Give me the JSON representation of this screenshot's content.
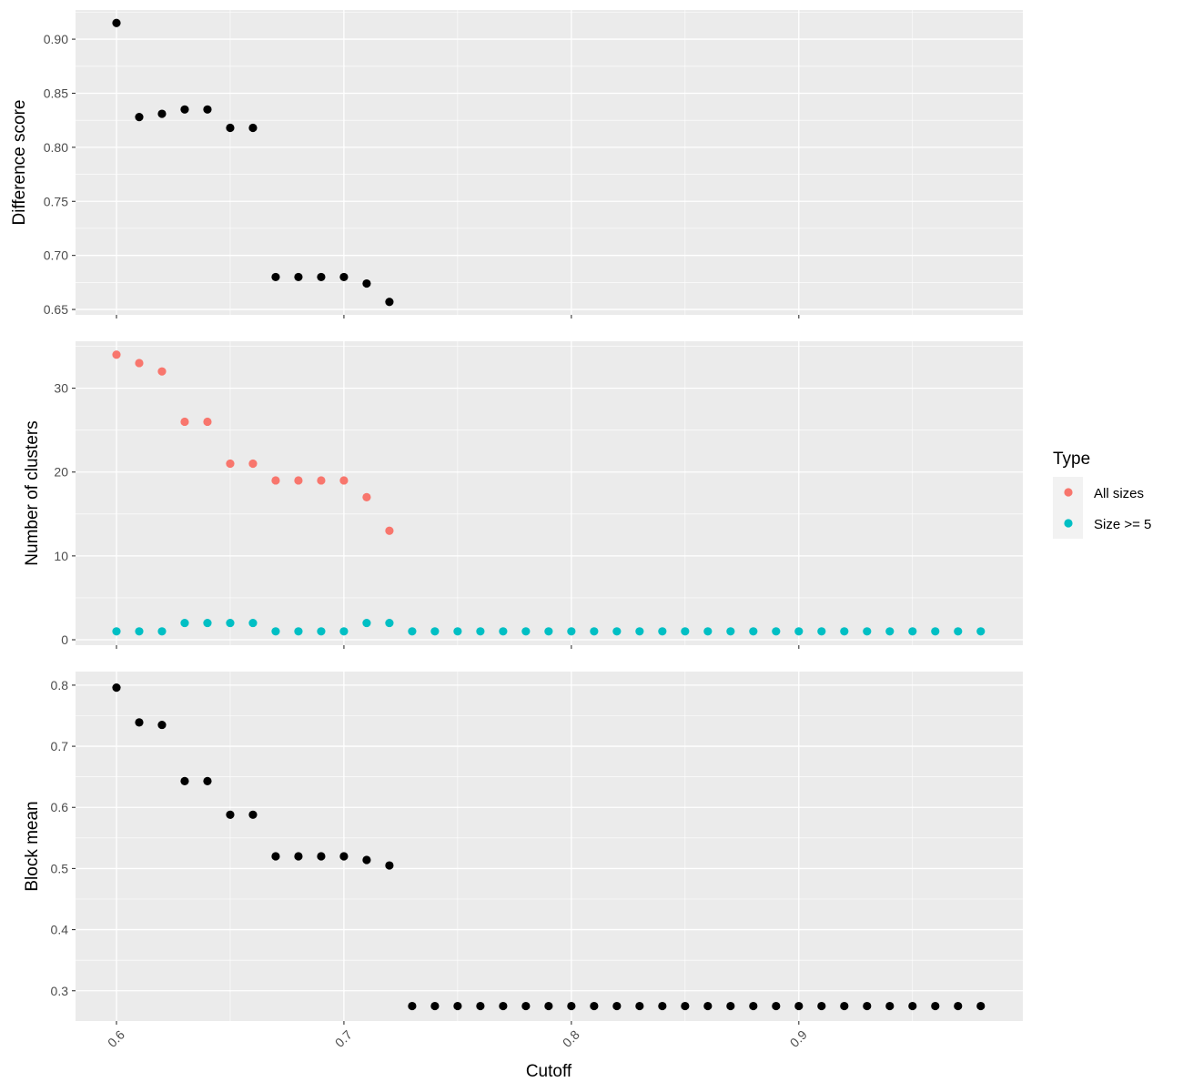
{
  "chart_data": [
    {
      "type": "scatter",
      "panel": "top",
      "ylabel": "Difference score",
      "xlim": [
        0.582,
        0.9985
      ],
      "ylim": [
        0.645,
        0.927
      ],
      "yticks": [
        0.65,
        0.7,
        0.75,
        0.8,
        0.85,
        0.9
      ],
      "ytick_labels": [
        "0.65",
        "0.70",
        "0.75",
        "0.80",
        "0.85",
        "0.90"
      ],
      "series": [
        {
          "color": "#000000",
          "x": [
            0.6,
            0.61,
            0.62,
            0.63,
            0.64,
            0.65,
            0.66,
            0.67,
            0.68,
            0.69,
            0.7,
            0.71,
            0.72
          ],
          "y": [
            0.915,
            0.828,
            0.831,
            0.835,
            0.835,
            0.818,
            0.818,
            0.68,
            0.68,
            0.68,
            0.68,
            0.674,
            0.657
          ]
        }
      ]
    },
    {
      "type": "scatter",
      "panel": "middle",
      "ylabel": "Number of clusters",
      "xlim": [
        0.582,
        0.9985
      ],
      "ylim": [
        -0.65,
        35.6
      ],
      "yticks": [
        0,
        10,
        20,
        30
      ],
      "ytick_labels": [
        "0",
        "10",
        "20",
        "30"
      ],
      "series": [
        {
          "name": "All sizes",
          "color": "#F8766D",
          "x": [
            0.6,
            0.61,
            0.62,
            0.63,
            0.64,
            0.65,
            0.66,
            0.67,
            0.68,
            0.69,
            0.7,
            0.71,
            0.72
          ],
          "y": [
            34,
            33,
            32,
            26,
            26,
            21,
            21,
            19,
            19,
            19,
            19,
            17,
            13
          ]
        },
        {
          "name": "Size >= 5",
          "color": "#00BFC4",
          "x": [
            0.6,
            0.61,
            0.62,
            0.63,
            0.64,
            0.65,
            0.66,
            0.67,
            0.68,
            0.69,
            0.7,
            0.71,
            0.72,
            0.73,
            0.74,
            0.75,
            0.76,
            0.77,
            0.78,
            0.79,
            0.8,
            0.81,
            0.82,
            0.83,
            0.84,
            0.85,
            0.86,
            0.87,
            0.88,
            0.89,
            0.9,
            0.91,
            0.92,
            0.93,
            0.94,
            0.95,
            0.96,
            0.97,
            0.98
          ],
          "y": [
            1,
            1,
            1,
            2,
            2,
            2,
            2,
            1,
            1,
            1,
            1,
            2,
            2,
            1,
            1,
            1,
            1,
            1,
            1,
            1,
            1,
            1,
            1,
            1,
            1,
            1,
            1,
            1,
            1,
            1,
            1,
            1,
            1,
            1,
            1,
            1,
            1,
            1,
            1
          ]
        }
      ]
    },
    {
      "type": "scatter",
      "panel": "bottom",
      "ylabel": "Block mean",
      "xlabel": "Cutoff",
      "xlim": [
        0.582,
        0.9985
      ],
      "ylim": [
        0.2505,
        0.8222
      ],
      "yticks": [
        0.3,
        0.4,
        0.5,
        0.6,
        0.7,
        0.8
      ],
      "ytick_labels": [
        "0.3",
        "0.4",
        "0.5",
        "0.6",
        "0.7",
        "0.8"
      ],
      "xticks": [
        0.6,
        0.7,
        0.8,
        0.9
      ],
      "xtick_labels": [
        "0.6",
        "0.7",
        "0.8",
        "0.9"
      ],
      "series": [
        {
          "color": "#000000",
          "x": [
            0.6,
            0.61,
            0.62,
            0.63,
            0.64,
            0.65,
            0.66,
            0.67,
            0.68,
            0.69,
            0.7,
            0.71,
            0.72,
            0.73,
            0.74,
            0.75,
            0.76,
            0.77,
            0.78,
            0.79,
            0.8,
            0.81,
            0.82,
            0.83,
            0.84,
            0.85,
            0.86,
            0.87,
            0.88,
            0.89,
            0.9,
            0.91,
            0.92,
            0.93,
            0.94,
            0.95,
            0.96,
            0.97,
            0.98
          ],
          "y": [
            0.796,
            0.739,
            0.735,
            0.643,
            0.643,
            0.588,
            0.588,
            0.52,
            0.52,
            0.52,
            0.52,
            0.514,
            0.505,
            0.275,
            0.275,
            0.275,
            0.275,
            0.275,
            0.275,
            0.275,
            0.275,
            0.275,
            0.275,
            0.275,
            0.275,
            0.275,
            0.275,
            0.275,
            0.275,
            0.275,
            0.275,
            0.275,
            0.275,
            0.275,
            0.275,
            0.275,
            0.275,
            0.275,
            0.275
          ]
        }
      ]
    }
  ],
  "legend": {
    "title": "Type",
    "items": [
      {
        "label": "All sizes",
        "color": "#F8766D"
      },
      {
        "label": "Size >= 5",
        "color": "#00BFC4"
      }
    ]
  },
  "panel_background": "#EBEBEB",
  "grid_color": "#FFFFFF"
}
